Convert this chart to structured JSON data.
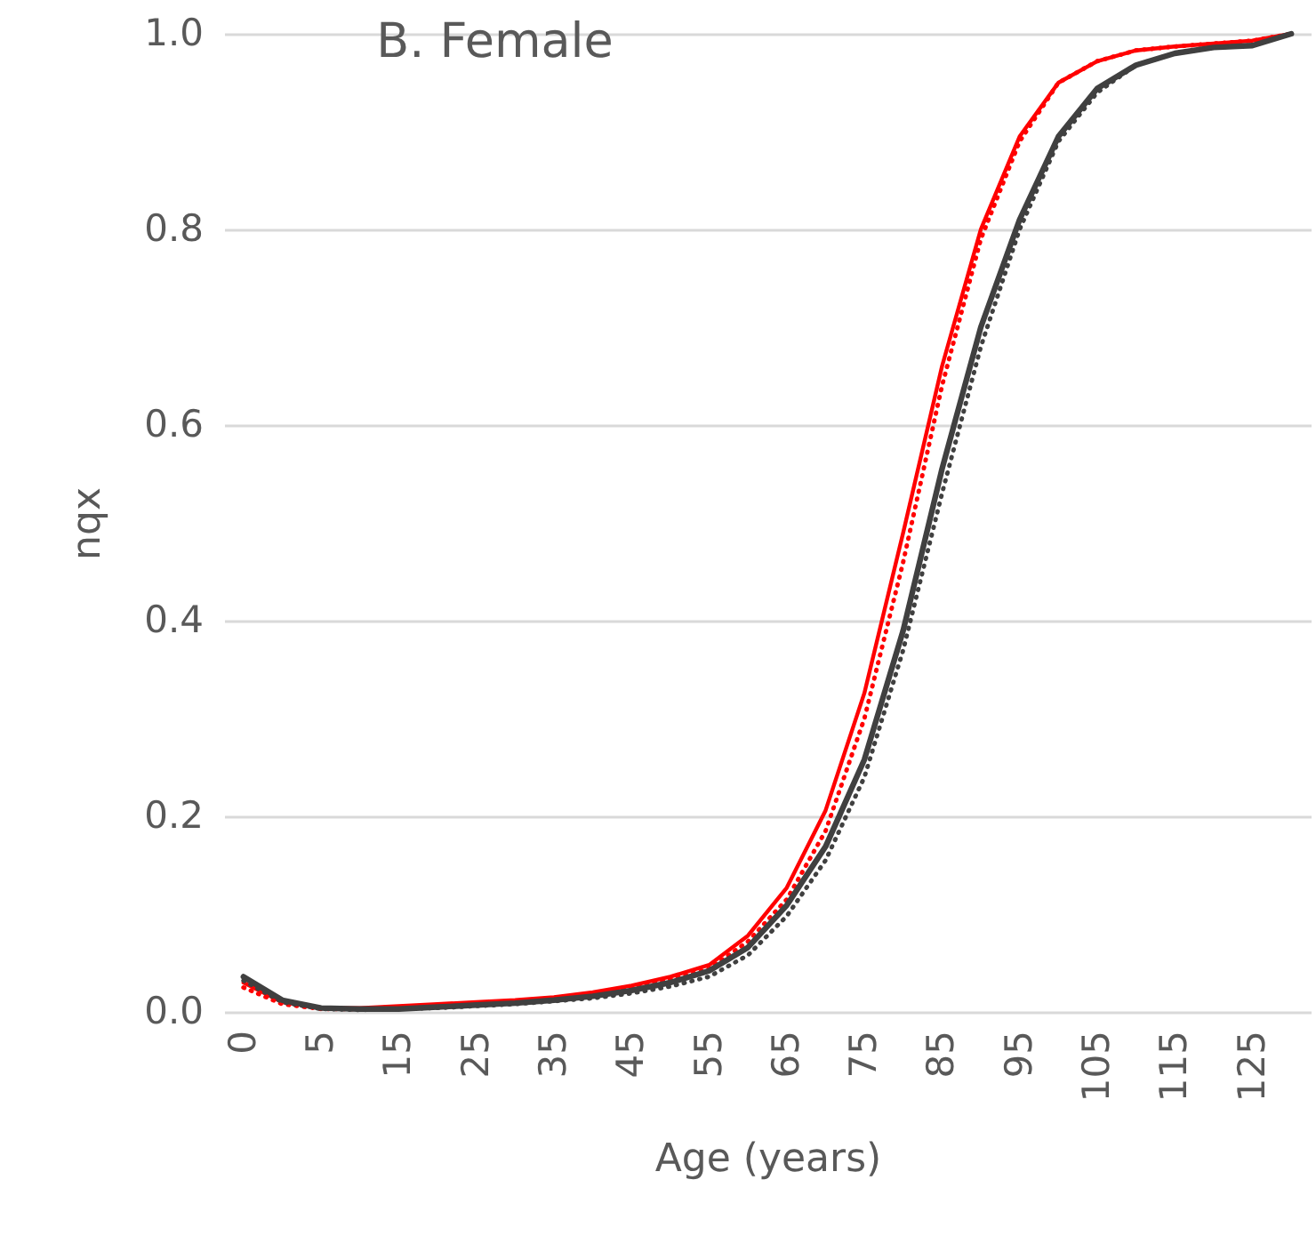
{
  "chart_data": {
    "type": "line",
    "title": "B. Female",
    "xlabel": "Age (years)",
    "ylabel": "nqx",
    "categories": [
      "0",
      null,
      "5",
      null,
      "15",
      null,
      "25",
      null,
      "35",
      null,
      "45",
      null,
      "55",
      null,
      "65",
      null,
      "75",
      null,
      "85",
      null,
      "95",
      null,
      "105",
      null,
      "115",
      null,
      "125",
      null
    ],
    "ylim": [
      0,
      1
    ],
    "yticks": [
      {
        "value": 0,
        "label": "0.0"
      },
      {
        "value": 0.2,
        "label": "0.2"
      },
      {
        "value": 0.4,
        "label": "0.4"
      },
      {
        "value": 0.6,
        "label": "0.6"
      },
      {
        "value": 0.8,
        "label": "0.8"
      },
      {
        "value": 1,
        "label": "1.0"
      }
    ],
    "grid": "y",
    "marker": "none",
    "series": [
      {
        "color": "#ff0000",
        "line_style": "solid",
        "values": [
          0.03,
          0.01,
          0.004,
          0.004,
          0.006,
          0.008,
          0.01,
          0.012,
          0.015,
          0.02,
          0.027,
          0.036,
          0.048,
          0.078,
          0.127,
          0.206,
          0.326,
          0.49,
          0.66,
          0.8,
          0.895,
          0.95,
          0.972,
          0.983,
          0.987,
          0.99,
          0.993,
          1.0
        ]
      },
      {
        "color": "#ff0000",
        "line_style": "dotted",
        "values": [
          0.025,
          0.008,
          0.003,
          0.003,
          0.005,
          0.007,
          0.009,
          0.011,
          0.014,
          0.018,
          0.025,
          0.033,
          0.044,
          0.072,
          0.115,
          0.185,
          0.3,
          0.46,
          0.64,
          0.79,
          0.89,
          0.95,
          0.972,
          0.983,
          0.987,
          0.99,
          0.993,
          1.0
        ]
      },
      {
        "color": "#404040",
        "line_style": "solid",
        "values": [
          0.036,
          0.012,
          0.004,
          0.003,
          0.003,
          0.005,
          0.007,
          0.009,
          0.012,
          0.016,
          0.022,
          0.03,
          0.042,
          0.066,
          0.109,
          0.169,
          0.258,
          0.39,
          0.555,
          0.7,
          0.81,
          0.895,
          0.944,
          0.968,
          0.98,
          0.986,
          0.988,
          1.0
        ]
      },
      {
        "color": "#404040",
        "line_style": "dotted",
        "values": [
          0.032,
          0.01,
          0.003,
          0.002,
          0.003,
          0.004,
          0.006,
          0.008,
          0.011,
          0.014,
          0.019,
          0.026,
          0.036,
          0.058,
          0.098,
          0.155,
          0.24,
          0.37,
          0.53,
          0.68,
          0.8,
          0.89,
          0.94,
          0.968,
          0.98,
          0.986,
          0.988,
          1.0
        ]
      }
    ]
  }
}
